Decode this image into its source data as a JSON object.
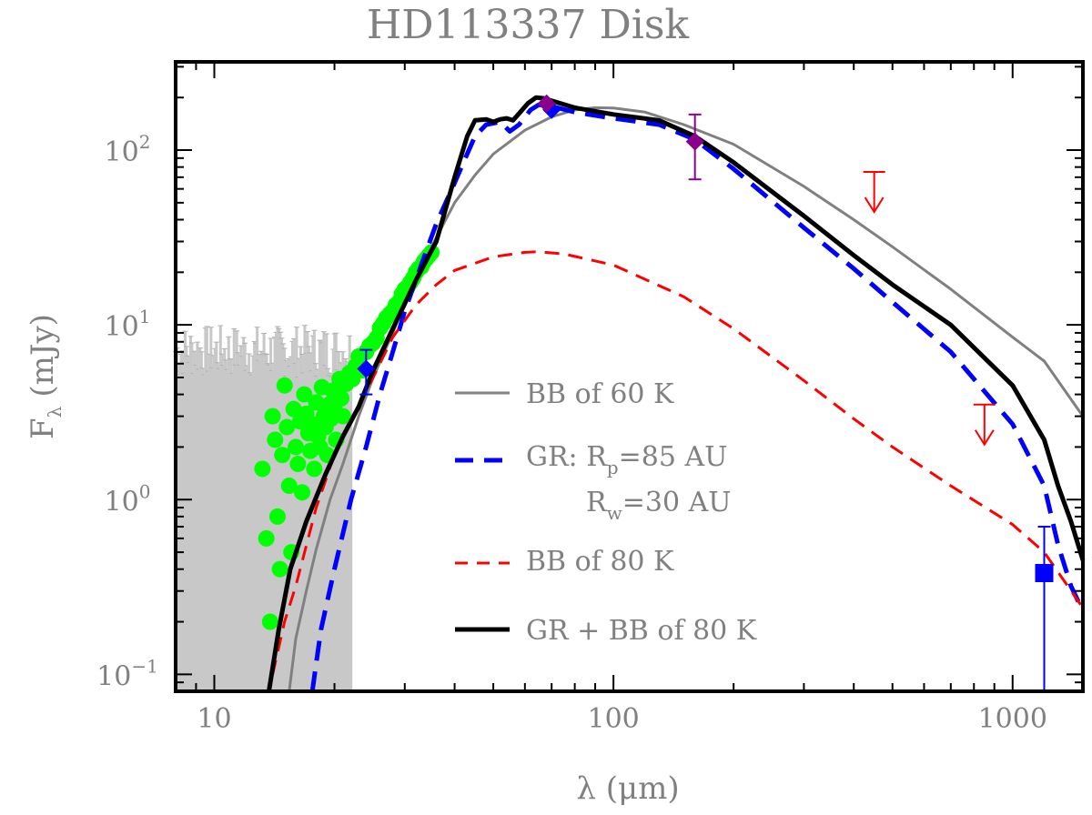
{
  "chart_data": {
    "type": "line",
    "title": "HD113337 Disk",
    "xlabel": "λ (μm)",
    "ylabel_main": "F",
    "ylabel_sub": "λ",
    "ylabel_units": "(mJy)",
    "xscale": "log",
    "yscale": "log",
    "xlim": [
      8,
      1500
    ],
    "ylim": [
      0.08,
      320
    ],
    "x_ticks": [
      {
        "value": 10,
        "label": "10"
      },
      {
        "value": 100,
        "label": "100"
      },
      {
        "value": 1000,
        "label": "1000"
      }
    ],
    "y_ticks": [
      {
        "value": 0.1,
        "base": "10",
        "exp": "−1"
      },
      {
        "value": 1,
        "base": "10",
        "exp": "0"
      },
      {
        "value": 10,
        "base": "10",
        "exp": "1"
      },
      {
        "value": 100,
        "base": "10",
        "exp": "2"
      }
    ],
    "legend_position": "center-right",
    "series": [
      {
        "name": "BB of 60 K",
        "legend_label": "BB of 60 K",
        "color": "#808080",
        "style": "solid",
        "points": [
          [
            15.4,
            0.08
          ],
          [
            16,
            0.16
          ],
          [
            17,
            0.3
          ],
          [
            18,
            0.52
          ],
          [
            19.5,
            1.0
          ],
          [
            21,
            1.6
          ],
          [
            23,
            3.0
          ],
          [
            25,
            5.0
          ],
          [
            28,
            9
          ],
          [
            31,
            16
          ],
          [
            35,
            28
          ],
          [
            40,
            50
          ],
          [
            45,
            72
          ],
          [
            50,
            95
          ],
          [
            60,
            130
          ],
          [
            70,
            155
          ],
          [
            80,
            170
          ],
          [
            90,
            175
          ],
          [
            100,
            174
          ],
          [
            120,
            165
          ],
          [
            150,
            140
          ],
          [
            200,
            108
          ],
          [
            300,
            62
          ],
          [
            400,
            40
          ],
          [
            500,
            28
          ],
          [
            700,
            16
          ],
          [
            1000,
            8.5
          ],
          [
            1200,
            6.2
          ],
          [
            1500,
            3.0
          ]
        ]
      },
      {
        "name": "GR: Rp=85 AU Rw=30 AU",
        "legend_label_main": "GR: R",
        "legend_label_sub": "p",
        "legend_label_rest": "=85 AU",
        "legend_line2_main": "R",
        "legend_line2_sub": "w",
        "legend_line2_rest": "=30 AU",
        "color": "#0000ff",
        "style": "dashed-thick",
        "points": [
          [
            17.6,
            0.08
          ],
          [
            18.5,
            0.18
          ],
          [
            20,
            0.4
          ],
          [
            22,
            1.0
          ],
          [
            24,
            2.0
          ],
          [
            26,
            4
          ],
          [
            28,
            7
          ],
          [
            30,
            12
          ],
          [
            33,
            22
          ],
          [
            36,
            38
          ],
          [
            40,
            65
          ],
          [
            43,
            95
          ],
          [
            45,
            120
          ],
          [
            48,
            140
          ],
          [
            52,
            145
          ],
          [
            55,
            128
          ],
          [
            58,
            140
          ],
          [
            62,
            170
          ],
          [
            65,
            182
          ],
          [
            70,
            178
          ],
          [
            80,
            165
          ],
          [
            100,
            152
          ],
          [
            130,
            140
          ],
          [
            160,
            115
          ],
          [
            200,
            78
          ],
          [
            300,
            36
          ],
          [
            400,
            21
          ],
          [
            500,
            13.5
          ],
          [
            700,
            7
          ],
          [
            1000,
            2.7
          ],
          [
            1200,
            1.2
          ],
          [
            1300,
            0.55
          ],
          [
            1400,
            0.32
          ],
          [
            1500,
            0.23
          ]
        ]
      },
      {
        "name": "BB of 80 K",
        "legend_label": "BB of 80 K",
        "color": "#ff0000",
        "style": "dashed",
        "points": [
          [
            14,
            0.1
          ],
          [
            15,
            0.2
          ],
          [
            16,
            0.32
          ],
          [
            18,
            0.9
          ],
          [
            20,
            1.8
          ],
          [
            22,
            2.8
          ],
          [
            25,
            5
          ],
          [
            28,
            8.5
          ],
          [
            32,
            13
          ],
          [
            36,
            17
          ],
          [
            40,
            20.5
          ],
          [
            50,
            24.5
          ],
          [
            60,
            26
          ],
          [
            65,
            26.2
          ],
          [
            75,
            25.5
          ],
          [
            100,
            22
          ],
          [
            150,
            14.5
          ],
          [
            200,
            9.5
          ],
          [
            300,
            4.8
          ],
          [
            400,
            2.9
          ],
          [
            500,
            2.0
          ],
          [
            700,
            1.2
          ],
          [
            1000,
            0.72
          ],
          [
            1200,
            0.5
          ],
          [
            1500,
            0.24
          ]
        ]
      },
      {
        "name": "GR + BB of 80 K",
        "legend_label": "GR + BB of 80 K",
        "color": "#000000",
        "style": "solid-thick",
        "points": [
          [
            13.7,
            0.08
          ],
          [
            14.5,
            0.18
          ],
          [
            15.5,
            0.4
          ],
          [
            17,
            0.75
          ],
          [
            19,
            1.4
          ],
          [
            21,
            2.3
          ],
          [
            23,
            3.4
          ],
          [
            25,
            5.5
          ],
          [
            28,
            9.5
          ],
          [
            32,
            18
          ],
          [
            36,
            30
          ],
          [
            40,
            70
          ],
          [
            43,
            120
          ],
          [
            45,
            148
          ],
          [
            48,
            150
          ],
          [
            50,
            145
          ],
          [
            52,
            150
          ],
          [
            54,
            152
          ],
          [
            56,
            148
          ],
          [
            58,
            162
          ],
          [
            61,
            185
          ],
          [
            64,
            200
          ],
          [
            67,
            198
          ],
          [
            72,
            188
          ],
          [
            80,
            175
          ],
          [
            100,
            160
          ],
          [
            130,
            148
          ],
          [
            160,
            120
          ],
          [
            200,
            85
          ],
          [
            300,
            42
          ],
          [
            400,
            25
          ],
          [
            500,
            17
          ],
          [
            700,
            10
          ],
          [
            1000,
            4.5
          ],
          [
            1200,
            2.2
          ],
          [
            1300,
            1.2
          ],
          [
            1400,
            0.75
          ],
          [
            1500,
            0.45
          ]
        ]
      }
    ],
    "photometry": [
      {
        "label": "Spitzer 24",
        "x": 24,
        "y": 5.6,
        "yerr_low": 4.0,
        "yerr_high": 7.2,
        "marker": "diamond",
        "color": "#0000ff"
      },
      {
        "label": "Spitzer 70",
        "x": 70,
        "y": 170,
        "marker": "diamond",
        "color": "#0000ff"
      },
      {
        "label": "Herschel 70",
        "x": 68,
        "y": 185,
        "marker": "diamond",
        "color": "#8b008b"
      },
      {
        "label": "Herschel 160",
        "x": 160,
        "y": 112,
        "yerr_low": 68,
        "yerr_high": 160,
        "marker": "diamond",
        "color": "#8b008b"
      },
      {
        "label": "1.2mm",
        "x": 1200,
        "y": 0.38,
        "yerr_low": 0.08,
        "yerr_high": 0.7,
        "marker": "square",
        "color": "#0000ff"
      }
    ],
    "upper_limits": [
      {
        "label": "450um limit",
        "x": 450,
        "y": 75,
        "color": "#ff0000"
      },
      {
        "label": "850um limit",
        "x": 850,
        "y": 3.5,
        "color": "#ff0000"
      }
    ],
    "irs_spectrum": {
      "name": "IRS spectrum (noisy)",
      "color": "#c8c8c8",
      "x_range": [
        8,
        22
      ],
      "y_upper_range": [
        5,
        10
      ]
    },
    "green_points": {
      "name": "IRS binned spectrum",
      "color": "#00ff00",
      "points": [
        [
          13.2,
          1.5
        ],
        [
          13.5,
          0.6
        ],
        [
          13.8,
          0.2
        ],
        [
          14.0,
          3.0
        ],
        [
          14.2,
          2.2
        ],
        [
          14.4,
          0.8
        ],
        [
          14.6,
          0.4
        ],
        [
          14.8,
          1.8
        ],
        [
          15.0,
          4.5
        ],
        [
          15.2,
          2.6
        ],
        [
          15.4,
          1.2
        ],
        [
          15.6,
          0.5
        ],
        [
          15.8,
          3.3
        ],
        [
          16.0,
          2.0
        ],
        [
          16.2,
          1.6
        ],
        [
          16.4,
          2.8
        ],
        [
          16.6,
          1.1
        ],
        [
          16.8,
          4.0
        ],
        [
          17.0,
          3.1
        ],
        [
          17.2,
          2.4
        ],
        [
          17.4,
          1.9
        ],
        [
          17.6,
          2.7
        ],
        [
          17.8,
          1.5
        ],
        [
          18.0,
          3.6
        ],
        [
          18.2,
          2.3
        ],
        [
          18.4,
          2.0
        ],
        [
          18.6,
          4.4
        ],
        [
          18.8,
          3.0
        ],
        [
          19.0,
          2.6
        ],
        [
          19.2,
          1.8
        ],
        [
          19.4,
          3.5
        ],
        [
          19.6,
          2.9
        ],
        [
          19.8,
          4.2
        ],
        [
          20.0,
          3.4
        ],
        [
          20.2,
          2.2
        ],
        [
          20.4,
          4.0
        ],
        [
          20.6,
          4.9
        ],
        [
          20.8,
          3.8
        ],
        [
          21.0,
          3.0
        ],
        [
          21.4,
          4.6
        ],
        [
          21.8,
          5.3
        ],
        [
          22.2,
          4.9
        ],
        [
          22.6,
          5.8
        ],
        [
          23.0,
          6.6
        ],
        [
          23.5,
          5.5
        ],
        [
          24.0,
          7.0
        ],
        [
          24.5,
          7.6
        ],
        [
          25.0,
          7.9
        ],
        [
          25.5,
          8.4
        ],
        [
          26.0,
          9.6
        ],
        [
          26.5,
          10.2
        ],
        [
          27.0,
          11.0
        ],
        [
          27.5,
          11.5
        ],
        [
          28.0,
          12.0
        ],
        [
          28.5,
          13.0
        ],
        [
          29.0,
          13.5
        ],
        [
          29.5,
          15.0
        ],
        [
          30.0,
          16.0
        ],
        [
          30.5,
          16.5
        ],
        [
          31.0,
          17.5
        ],
        [
          31.5,
          18.5
        ],
        [
          32.0,
          20.0
        ],
        [
          32.5,
          21.0
        ],
        [
          33.0,
          21.5
        ],
        [
          33.5,
          23.0
        ],
        [
          34.0,
          24.0
        ],
        [
          34.5,
          25.0
        ],
        [
          35.0,
          26.0
        ]
      ]
    }
  }
}
